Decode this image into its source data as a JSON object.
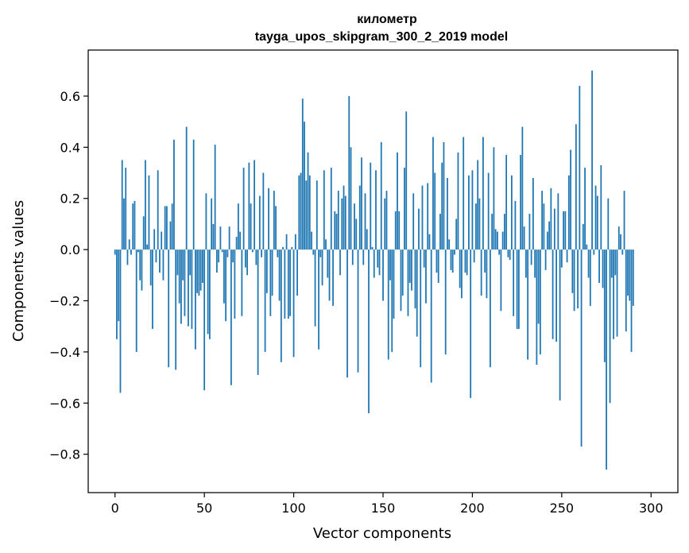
{
  "chart_data": {
    "type": "bar",
    "title": "километр",
    "subtitle": "tayga_upos_skipgram_300_2_2019 model",
    "xlabel": "Vector components",
    "ylabel": "Components values",
    "xlim": [
      -15,
      315
    ],
    "ylim": [
      -0.95,
      0.78
    ],
    "xticks": [
      0,
      50,
      100,
      150,
      200,
      250,
      300
    ],
    "xtick_labels": [
      "0",
      "50",
      "100",
      "150",
      "200",
      "250",
      "300"
    ],
    "yticks": [
      -0.8,
      -0.6,
      -0.4,
      -0.2,
      0.0,
      0.2,
      0.4,
      0.6
    ],
    "ytick_labels": [
      "−0.8",
      "−0.6",
      "−0.4",
      "−0.2",
      "0.0",
      "0.2",
      "0.4",
      "0.6"
    ],
    "bar_color": "#1f77b4",
    "grid": false,
    "values": [
      -0.02,
      -0.35,
      -0.28,
      -0.56,
      0.35,
      0.2,
      0.32,
      -0.06,
      0.04,
      -0.02,
      0.18,
      0.19,
      -0.4,
      -0.01,
      -0.12,
      -0.16,
      0.13,
      0.35,
      0.02,
      0.29,
      -0.14,
      -0.31,
      0.08,
      -0.05,
      0.31,
      -0.09,
      0.07,
      -0.12,
      0.17,
      0.17,
      -0.46,
      0.11,
      0.18,
      0.43,
      -0.47,
      -0.1,
      -0.21,
      -0.29,
      -0.12,
      -0.26,
      0.48,
      -0.3,
      -0.1,
      -0.31,
      0.43,
      -0.39,
      -0.17,
      -0.18,
      -0.16,
      -0.13,
      -0.55,
      0.22,
      -0.33,
      -0.35,
      0.2,
      0.1,
      0.41,
      -0.09,
      -0.05,
      0.09,
      -0.01,
      -0.21,
      -0.28,
      -0.03,
      0.09,
      -0.53,
      -0.05,
      -0.27,
      0.05,
      0.18,
      0.07,
      -0.26,
      0.32,
      -0.07,
      -0.1,
      0.34,
      0.18,
      -0.01,
      0.35,
      -0.06,
      -0.49,
      0.21,
      -0.03,
      0.3,
      -0.4,
      -0.17,
      0.24,
      -0.26,
      -0.18,
      0.23,
      0.17,
      -0.03,
      -0.2,
      -0.44,
      0.01,
      -0.27,
      0.06,
      -0.27,
      -0.26,
      0.01,
      -0.42,
      0.06,
      -0.18,
      0.29,
      0.3,
      0.59,
      0.5,
      0.27,
      0.38,
      0.29,
      0.07,
      -0.02,
      -0.3,
      0.27,
      -0.39,
      -0.03,
      -0.14,
      0.31,
      0.04,
      -0.11,
      -0.2,
      0.32,
      -0.22,
      0.15,
      0.14,
      0.23,
      -0.1,
      0.2,
      0.25,
      0.21,
      -0.5,
      0.6,
      0.4,
      -0.06,
      0.18,
      0.12,
      -0.48,
      0.25,
      0.36,
      -0.06,
      0.22,
      0.08,
      -0.64,
      0.34,
      0.01,
      -0.11,
      0.31,
      -0.07,
      -0.1,
      0.42,
      -0.2,
      0.2,
      0.23,
      -0.43,
      -0.12,
      -0.4,
      -0.27,
      0.15,
      0.38,
      0.15,
      -0.24,
      -0.18,
      0.32,
      0.54,
      -0.26,
      -0.13,
      -0.16,
      0.22,
      -0.23,
      -0.34,
      0.16,
      -0.46,
      0.25,
      -0.07,
      -0.21,
      0.26,
      0.06,
      -0.52,
      0.44,
      0.3,
      -0.09,
      -0.13,
      0.14,
      0.34,
      0.42,
      -0.41,
      0.28,
      0.04,
      -0.08,
      -0.09,
      -0.02,
      0.12,
      0.38,
      -0.15,
      -0.19,
      0.44,
      -0.09,
      -0.1,
      0.29,
      -0.58,
      0.31,
      -0.05,
      0.18,
      0.35,
      0.2,
      -0.18,
      0.44,
      -0.09,
      -0.19,
      0.3,
      -0.46,
      0.14,
      0.4,
      0.08,
      0.07,
      -0.02,
      -0.24,
      0.07,
      0.14,
      0.37,
      -0.03,
      -0.04,
      0.29,
      -0.26,
      0.19,
      -0.31,
      -0.31,
      0.37,
      0.48,
      0.09,
      -0.11,
      -0.43,
      0.14,
      -0.06,
      0.28,
      -0.11,
      -0.45,
      -0.29,
      -0.41,
      0.23,
      0.18,
      -0.08,
      0.07,
      0.11,
      0.24,
      -0.35,
      0.16,
      -0.36,
      0.22,
      -0.59,
      -0.07,
      0.15,
      0.15,
      -0.05,
      0.29,
      0.39,
      -0.17,
      -0.24,
      0.49,
      -0.23,
      0.64,
      -0.77,
      0.1,
      0.32,
      0.02,
      -0.11,
      -0.22,
      0.7,
      -0.02,
      0.25,
      0.21,
      -0.13,
      0.33,
      -0.15,
      -0.44,
      -0.86,
      0.2,
      -0.6,
      -0.11,
      -0.35,
      -0.1,
      -0.34,
      0.09,
      0.06,
      -0.02,
      0.23,
      -0.32,
      -0.18,
      -0.2,
      -0.4,
      -0.22
    ]
  }
}
